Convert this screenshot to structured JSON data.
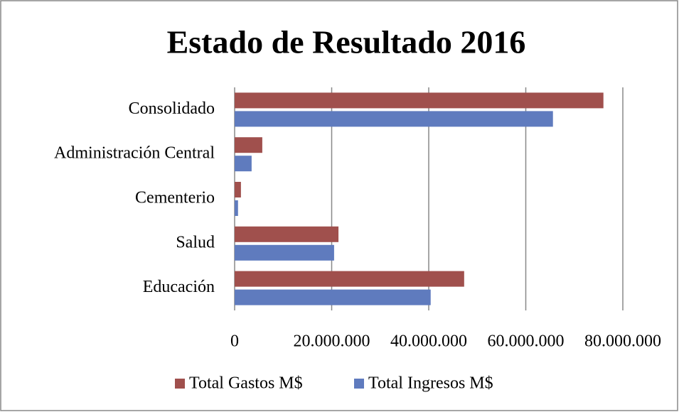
{
  "chart_data": {
    "type": "hbar",
    "title": "Estado de Resultado 2016",
    "categories": [
      "Consolidado",
      "Administración Central",
      "Cementerio",
      "Salud",
      "Educación"
    ],
    "series": [
      {
        "name": "Total Gastos M$",
        "color": "#a0504d",
        "values": [
          76000000,
          5700000,
          1300000,
          21400000,
          47300000
        ]
      },
      {
        "name": "Total Ingresos M$",
        "color": "#5f7bbe",
        "values": [
          65600000,
          3500000,
          700000,
          20500000,
          40400000
        ]
      }
    ],
    "xlim": [
      0,
      80000000
    ],
    "xticks": [
      0,
      {
        "value": 20000000,
        "label": "20.000.000"
      },
      {
        "value": 40000000,
        "label": "40.000.000"
      },
      {
        "value": 60000000,
        "label": "60.000.000"
      },
      {
        "value": 80000000,
        "label": "80.000.000"
      }
    ],
    "grid": true,
    "legend": "bottom"
  }
}
